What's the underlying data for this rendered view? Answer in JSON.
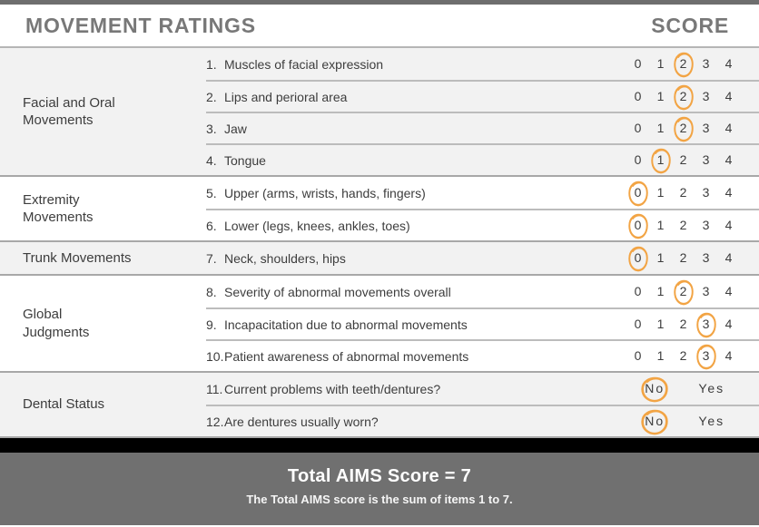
{
  "header": {
    "title": "MOVEMENT RATINGS",
    "score_label": "SCORE"
  },
  "scale": {
    "options": [
      "0",
      "1",
      "2",
      "3",
      "4"
    ]
  },
  "yesno": {
    "options": [
      "No",
      "Yes"
    ]
  },
  "sections": [
    {
      "category": "Facial and Oral\nMovements",
      "items": [
        {
          "num": "1.",
          "label": "Muscles of facial expression",
          "type": "scale",
          "selected": "2"
        },
        {
          "num": "2.",
          "label": "Lips and perioral area",
          "type": "scale",
          "selected": "2"
        },
        {
          "num": "3.",
          "label": "Jaw",
          "type": "scale",
          "selected": "2"
        },
        {
          "num": "4.",
          "label": "Tongue",
          "type": "scale",
          "selected": "1"
        }
      ]
    },
    {
      "category": "Extremity\nMovements",
      "items": [
        {
          "num": "5.",
          "label": "Upper (arms, wrists, hands, fingers)",
          "type": "scale",
          "selected": "0"
        },
        {
          "num": "6.",
          "label": "Lower (legs, knees, ankles, toes)",
          "type": "scale",
          "selected": "0"
        }
      ]
    },
    {
      "category": "Trunk Movements",
      "items": [
        {
          "num": "7.",
          "label": "Neck, shoulders, hips",
          "type": "scale",
          "selected": "0"
        }
      ]
    },
    {
      "category": "Global\nJudgments",
      "items": [
        {
          "num": "8.",
          "label": "Severity of abnormal movements overall",
          "type": "scale",
          "selected": "2"
        },
        {
          "num": "9.",
          "label": "Incapacitation due to abnormal movements",
          "type": "scale",
          "selected": "3"
        },
        {
          "num": "10.",
          "label": "Patient awareness of abnormal movements",
          "type": "scale",
          "selected": "3"
        }
      ]
    },
    {
      "category": "Dental Status",
      "items": [
        {
          "num": "11.",
          "label": "Current problems with teeth/dentures?",
          "type": "yesno",
          "selected": "No"
        },
        {
          "num": "12.",
          "label": "Are dentures usually worn?",
          "type": "yesno",
          "selected": "No"
        }
      ]
    }
  ],
  "footer": {
    "total": "Total AIMS Score = 7",
    "note": "The Total AIMS score is the sum of items 1 to 7."
  },
  "colors": {
    "accent": "#F2A444",
    "bar_gray": "#6e6e6e",
    "section_alt": "#f2f2f2"
  }
}
